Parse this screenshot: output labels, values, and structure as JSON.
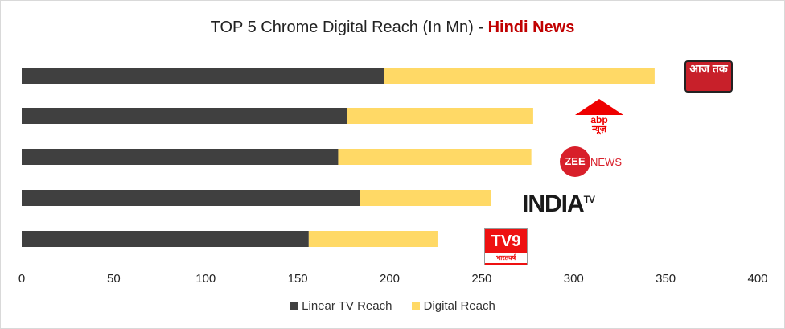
{
  "chart_data": {
    "type": "bar",
    "stacked": true,
    "orientation": "horizontal",
    "title_prefix": "TOP 5 Chrome Digital Reach (In Mn) - ",
    "title_highlight": "Hindi News",
    "categories": [
      "Aaj Tak",
      "ABP News",
      "Zee News",
      "India TV",
      "TV9 Bharatvarsh"
    ],
    "series": [
      {
        "name": "Linear TV Reach",
        "color": "#404040",
        "values": [
          197,
          177,
          172,
          184,
          156
        ]
      },
      {
        "name": "Digital Reach",
        "color": "#ffd966",
        "values": [
          147,
          101,
          105,
          71,
          70
        ]
      }
    ],
    "xlim": [
      0,
      400
    ],
    "xticks": [
      "0",
      "50",
      "100",
      "150",
      "200",
      "250",
      "300",
      "350",
      "400"
    ],
    "legend_position": "bottom",
    "grid": false
  },
  "logos": [
    "आज तक",
    "abp",
    "न्यूज़",
    "ZEE",
    "NEWS",
    "INDIA",
    "TV",
    "TV9",
    "भारतवर्ष"
  ]
}
